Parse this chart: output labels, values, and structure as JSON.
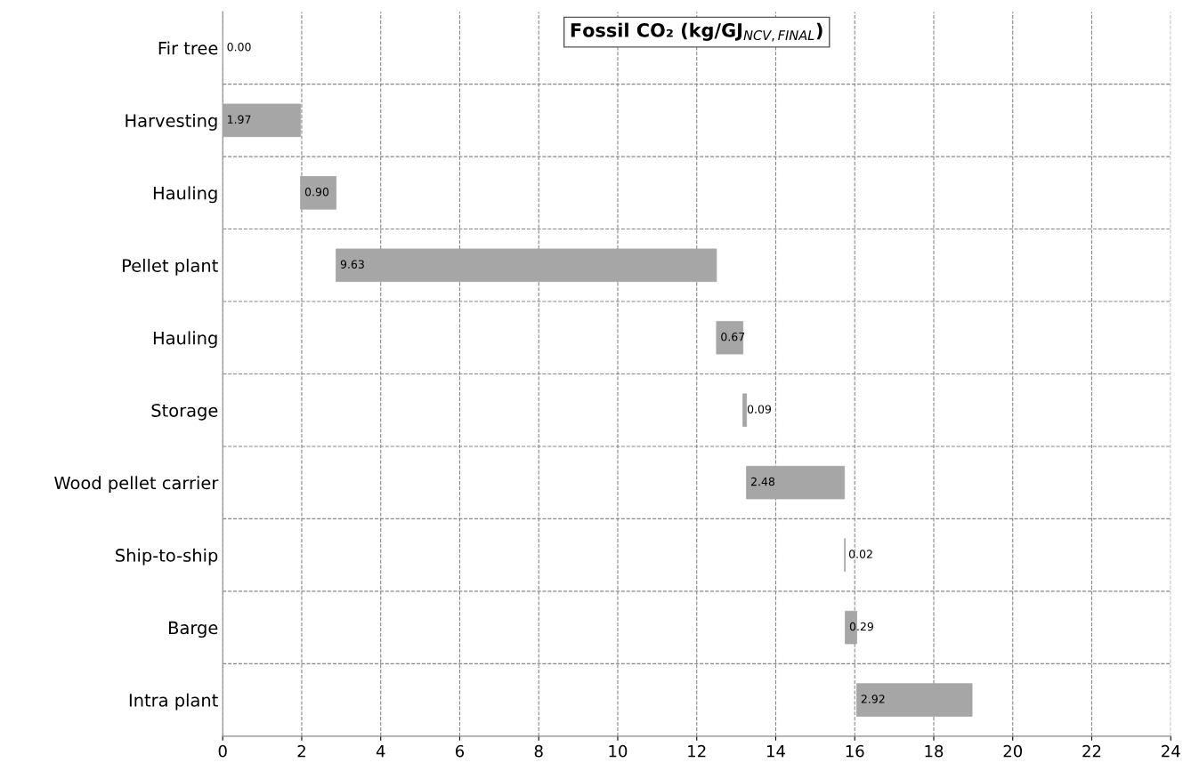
{
  "chart_data": {
    "type": "bar",
    "orientation": "horizontal",
    "title": "Fossil CO₂ (kg/GJ$_{NCV,FINAL}$)",
    "categories": [
      "Fir tree",
      "Harvesting",
      "Hauling",
      "Pellet plant",
      "Hauling",
      "Storage",
      "Wood pellet carrier",
      "Ship-to-ship",
      "Barge",
      "Intra plant"
    ],
    "values": [
      0.0,
      1.97,
      0.9,
      9.63,
      0.67,
      0.09,
      2.48,
      0.02,
      0.29,
      2.92
    ],
    "base": [
      0,
      0,
      1.97,
      2.87,
      12.5,
      13.17,
      13.26,
      15.74,
      15.76,
      16.05
    ],
    "color": "#a6a6a6",
    "value_labels": [
      "0.00",
      "1.97",
      "0.90",
      "9.63",
      "0.67",
      "0.09",
      "2.48",
      "0.02",
      "0.29",
      "2.92"
    ],
    "xlim": [
      0,
      24
    ],
    "xticks": [
      0,
      2,
      4,
      6,
      8,
      10,
      12,
      14,
      16,
      18,
      20,
      22,
      24
    ],
    "grid": true
  }
}
